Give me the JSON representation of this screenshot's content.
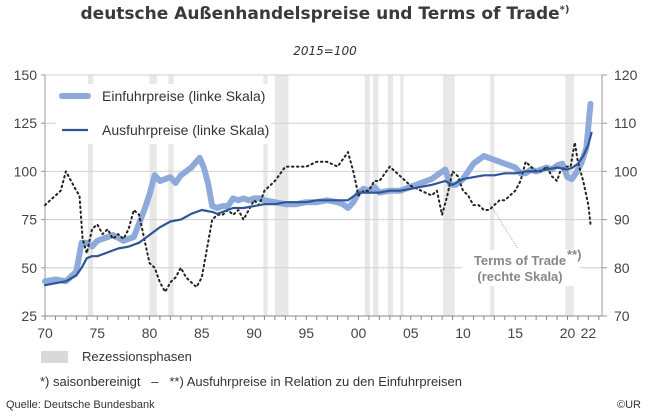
{
  "chart_data": {
    "type": "line",
    "title": "deutsche Außenhandelspreise und Terms of Trade",
    "title_superscript": "*)",
    "subtitle": "2015=100",
    "xlabel": "",
    "ylabel_left": "",
    "ylabel_right": "",
    "xlim": [
      1970,
      2023.5
    ],
    "ylim_left": [
      25,
      150
    ],
    "ylim_right": [
      70,
      120
    ],
    "grid": true,
    "x_ticks": [
      {
        "value": 1970,
        "label": "70"
      },
      {
        "value": 1975,
        "label": "75"
      },
      {
        "value": 1980,
        "label": "80"
      },
      {
        "value": 1985,
        "label": "85"
      },
      {
        "value": 1990,
        "label": "90"
      },
      {
        "value": 1995,
        "label": "95"
      },
      {
        "value": 2000,
        "label": "00"
      },
      {
        "value": 2005,
        "label": "05"
      },
      {
        "value": 2010,
        "label": "10"
      },
      {
        "value": 2015,
        "label": "15"
      },
      {
        "value": 2020,
        "label": "20"
      },
      {
        "value": 2022,
        "label": "22"
      }
    ],
    "y_ticks_left": [
      25,
      50,
      75,
      100,
      125,
      150
    ],
    "y_ticks_right": [
      70,
      80,
      90,
      100,
      110,
      120
    ],
    "legend_position": "top-left",
    "series": [
      {
        "name": "Einfuhrpreise (linke Skala)",
        "axis": "left",
        "style": "thick",
        "color": "#8eaadb",
        "x": [
          1970,
          1971,
          1972,
          1973,
          1973.5,
          1974,
          1974.5,
          1975,
          1976,
          1976.5,
          1977.5,
          1978.5,
          1979,
          1979.5,
          1980,
          1980.5,
          1981,
          1981.5,
          1982,
          1982.5,
          1983,
          1983.5,
          1984,
          1984.8,
          1985.2,
          1985.6,
          1986,
          1986.5,
          1987,
          1987.5,
          1988,
          1988.5,
          1989,
          1989.5,
          1990,
          1990.5,
          1991,
          1992,
          1993,
          1994,
          1995,
          1996,
          1997,
          1998,
          1998.5,
          1999,
          1999.5,
          2000,
          2000.5,
          2001,
          2001.5,
          2002,
          2003,
          2004,
          2005,
          2006,
          2007,
          2007.5,
          2008.3,
          2008.8,
          2009.3,
          2010,
          2010.5,
          2011,
          2011.5,
          2012,
          2012.5,
          2013,
          2014,
          2014.5,
          2015,
          2015.5,
          2016,
          2016.5,
          2017,
          2017.5,
          2018,
          2018.5,
          2019,
          2019.5,
          2020,
          2020.4,
          2020.8,
          2021.3,
          2021.8,
          2022.2
        ],
        "values": [
          43,
          44,
          43,
          48,
          63,
          63,
          61,
          64,
          66,
          67,
          64,
          66,
          73,
          80,
          88,
          98,
          95,
          96,
          97,
          94,
          98,
          100,
          102,
          107,
          102,
          94,
          82,
          81,
          82,
          82,
          86,
          85,
          86,
          85,
          86,
          86,
          85,
          84,
          83,
          83,
          84,
          84,
          85,
          84,
          83,
          81,
          84,
          89,
          91,
          90,
          92,
          89,
          90,
          90,
          92,
          94,
          96,
          98,
          101,
          93,
          93,
          96,
          100,
          104,
          106,
          108,
          107,
          106,
          104,
          103,
          102,
          99,
          99,
          101,
          100,
          101,
          102,
          101,
          103,
          104,
          97,
          96,
          99,
          104,
          112,
          135
        ]
      },
      {
        "name": "Ausfuhrpreise (linke Skala)",
        "axis": "left",
        "style": "thin",
        "color": "#2f5597",
        "x": [
          1970,
          1971,
          1972,
          1973,
          1973.5,
          1974,
          1974.5,
          1975,
          1976,
          1977,
          1978,
          1979,
          1980,
          1981,
          1982,
          1983,
          1984,
          1985,
          1986,
          1986.5,
          1987,
          1988,
          1989,
          1990,
          1991,
          1992,
          1993,
          1994,
          1995,
          1996,
          1997,
          1998,
          1999,
          2000,
          2001,
          2002,
          2003,
          2004,
          2005,
          2006,
          2007,
          2008.3,
          2009,
          2010,
          2011,
          2012,
          2013,
          2014,
          2015,
          2016,
          2017,
          2018,
          2019,
          2020,
          2020.5,
          2021,
          2021.5,
          2022,
          2022.3
        ],
        "values": [
          41,
          42,
          43,
          46,
          50,
          55,
          56,
          56,
          58,
          60,
          61,
          63,
          67,
          71,
          74,
          75,
          78,
          80,
          79,
          78,
          79,
          81,
          81,
          82,
          83,
          83,
          84,
          84,
          84,
          85,
          85,
          85,
          85,
          89,
          89,
          89,
          90,
          90,
          91,
          92,
          93,
          95,
          93,
          96,
          97,
          98,
          98,
          99,
          99,
          100,
          100,
          101,
          102,
          101,
          102,
          104,
          108,
          114,
          120
        ]
      },
      {
        "name": "Terms of Trade (rechte Skala)",
        "axis": "right",
        "style": "dotted",
        "color": "#222222",
        "x": [
          1970,
          1970.5,
          1971,
          1971.5,
          1972,
          1972.5,
          1973,
          1973.3,
          1973.6,
          1974,
          1974.5,
          1975,
          1975.5,
          1976,
          1976.5,
          1977,
          1977.5,
          1978,
          1978.5,
          1979,
          1979.5,
          1980,
          1980.5,
          1981,
          1981.5,
          1982,
          1982.5,
          1983,
          1983.5,
          1984,
          1984.5,
          1985,
          1985.5,
          1986,
          1986.5,
          1987,
          1987.5,
          1988,
          1988.5,
          1989,
          1989.5,
          1990,
          1990.5,
          1991,
          1991.5,
          1992,
          1993,
          1994,
          1995,
          1996,
          1997,
          1998,
          1999,
          1999.5,
          2000,
          2000.5,
          2001,
          2001.5,
          2002,
          2003,
          2004,
          2005,
          2006,
          2007,
          2007.5,
          2008,
          2008.5,
          2009,
          2009.5,
          2010,
          2010.5,
          2011,
          2011.5,
          2012,
          2012.5,
          2013,
          2013.5,
          2014,
          2014.5,
          2015,
          2015.5,
          2016,
          2016.5,
          2017,
          2017.5,
          2018,
          2018.5,
          2019,
          2019.3,
          2019.8,
          2020.3,
          2020.7,
          2021,
          2021.5,
          2022,
          2022.2
        ],
        "values": [
          93,
          94,
          95,
          96,
          100,
          98,
          96,
          95,
          86,
          83,
          88,
          89,
          87,
          88,
          86,
          87,
          86,
          88,
          92,
          91,
          86,
          81,
          80,
          77,
          75,
          77,
          78,
          80,
          78,
          77,
          76,
          78,
          84,
          90,
          91,
          91,
          92,
          91,
          92,
          90,
          92,
          94,
          93,
          96,
          97,
          98,
          101,
          101,
          101,
          102,
          102,
          101,
          104,
          100,
          95,
          96,
          96,
          98,
          98,
          101,
          99,
          97,
          96,
          95,
          96,
          91,
          95,
          100,
          99,
          96,
          95,
          93,
          93,
          92,
          92,
          93,
          94,
          94,
          95,
          96,
          98,
          102,
          101,
          100,
          100,
          101,
          99,
          98,
          100,
          101,
          101,
          106,
          102,
          98,
          93,
          89
        ]
      }
    ],
    "recession_bands": [
      [
        1974.1,
        1974.6
      ],
      [
        1980.0,
        1980.7
      ],
      [
        1981.8,
        1982.3
      ],
      [
        1990.9,
        1991.3
      ],
      [
        1992.0,
        1993.3
      ],
      [
        2000.6,
        2001.1
      ],
      [
        2001.4,
        2001.9
      ],
      [
        2002.8,
        2003.3
      ],
      [
        2004.0,
        2004.3
      ],
      [
        2008.1,
        2009.2
      ],
      [
        2012.6,
        2013.0
      ],
      [
        2019.8,
        2020.6
      ]
    ],
    "annotations": [
      {
        "text_line1": "Terms of Trade",
        "superscript": "**)",
        "text_line2": "(rechte Skala)",
        "points_to_year": 2012.5
      }
    ],
    "legend": [
      {
        "label": "Einfuhrpreise (linke Skala)",
        "color": "#8eaadb",
        "style": "thick"
      },
      {
        "label": "Ausfuhrpreise (linke Skala)",
        "color": "#2f5597",
        "style": "thin"
      }
    ]
  },
  "footer": {
    "recession_label": "Rezessionsphasen",
    "recession_color": "#d9d9d9",
    "note": "*) saisonbereinigt   –   **) Ausfuhrpreise in Relation zu den Einfuhrpreisen",
    "source": "Quelle: Deutsche Bundesbank",
    "copyright": "©UR"
  }
}
